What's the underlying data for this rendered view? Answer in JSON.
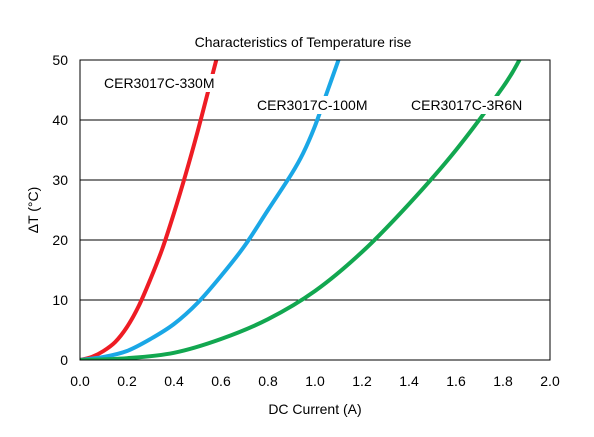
{
  "chart_data": {
    "type": "line",
    "title": "Characteristics of Temperature rise",
    "xlabel": "DC Current (A)",
    "ylabel": "ΔT (°C)",
    "xlim": [
      0,
      2.0
    ],
    "ylim": [
      0,
      50
    ],
    "x_ticks": [
      "0.0",
      "0.2",
      "0.4",
      "0.6",
      "0.8",
      "1.0",
      "1.2",
      "1.4",
      "1.6",
      "1.8",
      "2.0"
    ],
    "y_ticks": [
      "0",
      "10",
      "20",
      "30",
      "40",
      "50"
    ],
    "grid": "horizontal",
    "series": [
      {
        "name": "CER3017C-330M",
        "color": "#ee1c24",
        "x": [
          0.0,
          0.05,
          0.1,
          0.15,
          0.2,
          0.25,
          0.3,
          0.35,
          0.4,
          0.45,
          0.5,
          0.55,
          0.58
        ],
        "y": [
          0,
          0.5,
          1.5,
          3.0,
          5.5,
          9.0,
          13.5,
          18.5,
          24.5,
          31.0,
          38.0,
          45.5,
          50.0
        ]
      },
      {
        "name": "CER3017C-100M",
        "color": "#1aa7e6",
        "x": [
          0.0,
          0.1,
          0.2,
          0.3,
          0.4,
          0.5,
          0.6,
          0.7,
          0.8,
          0.9,
          0.95,
          1.0,
          1.05,
          1.1
        ],
        "y": [
          0,
          0.5,
          1.5,
          3.5,
          6.0,
          9.5,
          14.0,
          19.0,
          25.0,
          31.0,
          34.5,
          39.0,
          44.5,
          50.0
        ]
      },
      {
        "name": "CER3017C-3R6N",
        "color": "#12a750",
        "x": [
          0.0,
          0.2,
          0.4,
          0.6,
          0.8,
          1.0,
          1.2,
          1.4,
          1.6,
          1.8,
          1.87
        ],
        "y": [
          0,
          0.3,
          1.2,
          3.5,
          6.8,
          11.5,
          18.0,
          26.0,
          35.0,
          45.5,
          50.0
        ]
      }
    ]
  }
}
